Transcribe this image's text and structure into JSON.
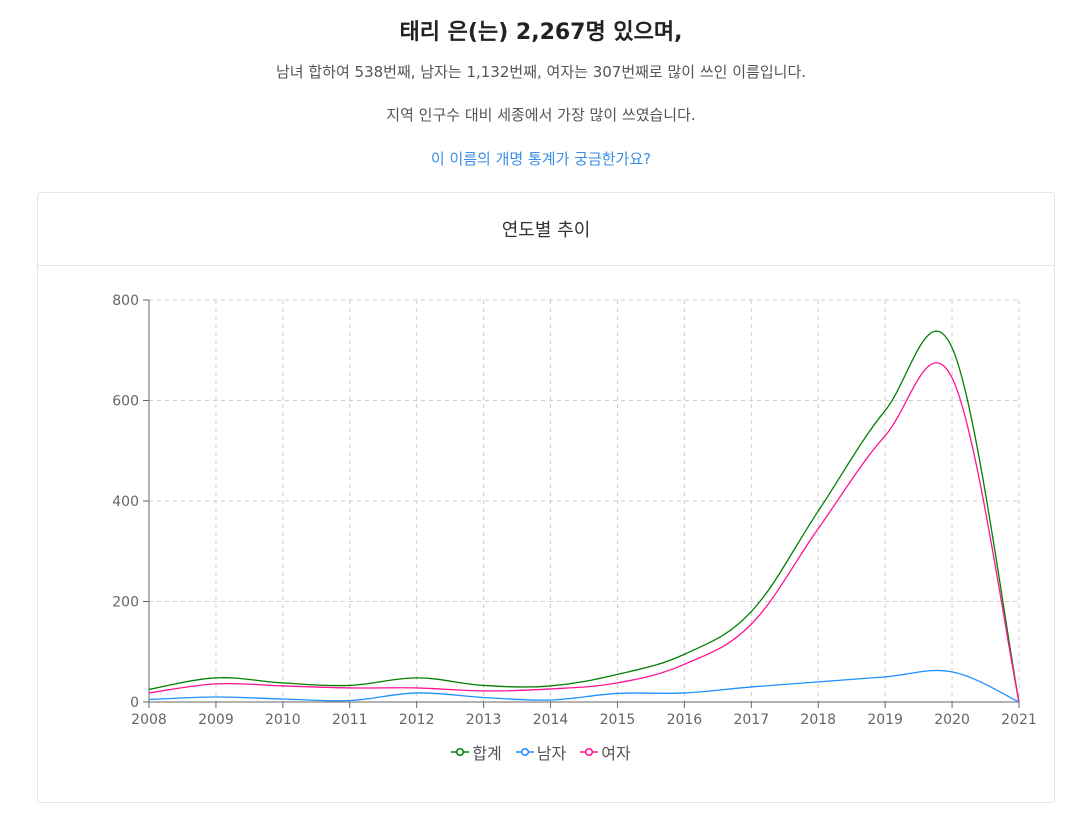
{
  "header": {
    "headline": "태리 은(는) 2,267명 있으며,",
    "line2": "남녀 합하여 538번째, 남자는 1,132번째, 여자는 307번째로 많이 쓰인 이름입니다.",
    "line3": "지역 인구수 대비 세종에서 가장 많이 쓰였습니다.",
    "link": "이 이름의 개명 통계가 궁금한가요?"
  },
  "card": {
    "title": "연도별 추이"
  },
  "colors": {
    "total": "#008000",
    "male": "#1e90ff",
    "female": "#ff1493",
    "grid": "#cccccc",
    "link": "#3a8ee6"
  },
  "chart_data": {
    "type": "line",
    "categories": [
      "2008",
      "2009",
      "2010",
      "2011",
      "2012",
      "2013",
      "2014",
      "2015",
      "2016",
      "2017",
      "2018",
      "2019",
      "2020",
      "2021"
    ],
    "ylim": [
      0,
      800
    ],
    "yticks": [
      "0",
      "200",
      "400",
      "600",
      "800"
    ],
    "grid": true,
    "legend_position": "bottom",
    "series": [
      {
        "name": "합계",
        "key": "total",
        "values": [
          25,
          48,
          38,
          33,
          48,
          33,
          32,
          55,
          95,
          180,
          380,
          580,
          705,
          0
        ]
      },
      {
        "name": "남자",
        "key": "male",
        "values": [
          5,
          10,
          6,
          3,
          18,
          9,
          4,
          17,
          18,
          30,
          40,
          50,
          60,
          0
        ]
      },
      {
        "name": "여자",
        "key": "female",
        "values": [
          18,
          36,
          32,
          28,
          28,
          22,
          26,
          38,
          75,
          155,
          345,
          530,
          645,
          0
        ]
      }
    ]
  }
}
